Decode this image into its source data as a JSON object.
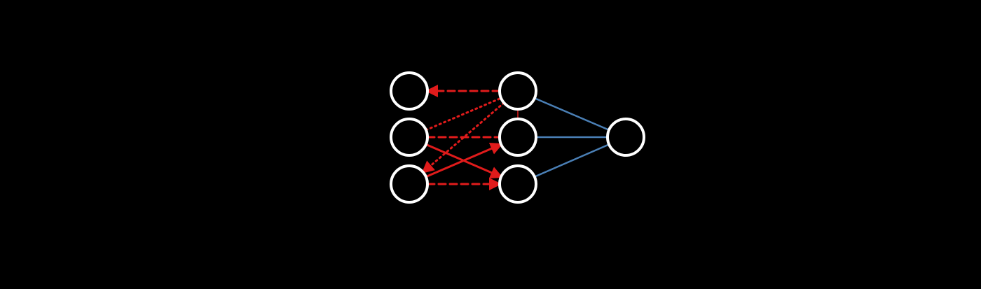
{
  "diagram": {
    "type": "neural-network",
    "colors": {
      "background": "#000000",
      "node_stroke": "#ffffff",
      "attention_edge": "#e01b1b",
      "output_edge": "#4a7fb5"
    },
    "layers": [
      {
        "name": "input",
        "nodes": 3
      },
      {
        "name": "hidden",
        "nodes": 3
      },
      {
        "name": "output",
        "nodes": 1
      }
    ],
    "attention_edges": [
      {
        "from": "hidden-0",
        "to": "input-0",
        "style": "dashed",
        "arrow": true
      },
      {
        "from": "hidden-0",
        "to": "hidden-1",
        "style": "thin",
        "arrow": false
      },
      {
        "from": "hidden-0",
        "to": "input-2",
        "style": "dotted",
        "arrow": true
      },
      {
        "from": "input-1",
        "to": "hidden-0",
        "style": "dotted",
        "arrow": false
      },
      {
        "from": "input-1",
        "to": "hidden-1",
        "style": "dashed",
        "arrow": false
      },
      {
        "from": "input-1",
        "to": "hidden-2",
        "style": "solid",
        "arrow": true
      },
      {
        "from": "input-2",
        "to": "hidden-1",
        "style": "solid",
        "arrow": true
      },
      {
        "from": "input-2",
        "to": "hidden-2",
        "style": "dashed",
        "arrow": true
      }
    ],
    "output_edges": [
      {
        "from": "hidden-0",
        "to": "output-0"
      },
      {
        "from": "hidden-1",
        "to": "output-0"
      },
      {
        "from": "hidden-2",
        "to": "output-0"
      }
    ]
  }
}
